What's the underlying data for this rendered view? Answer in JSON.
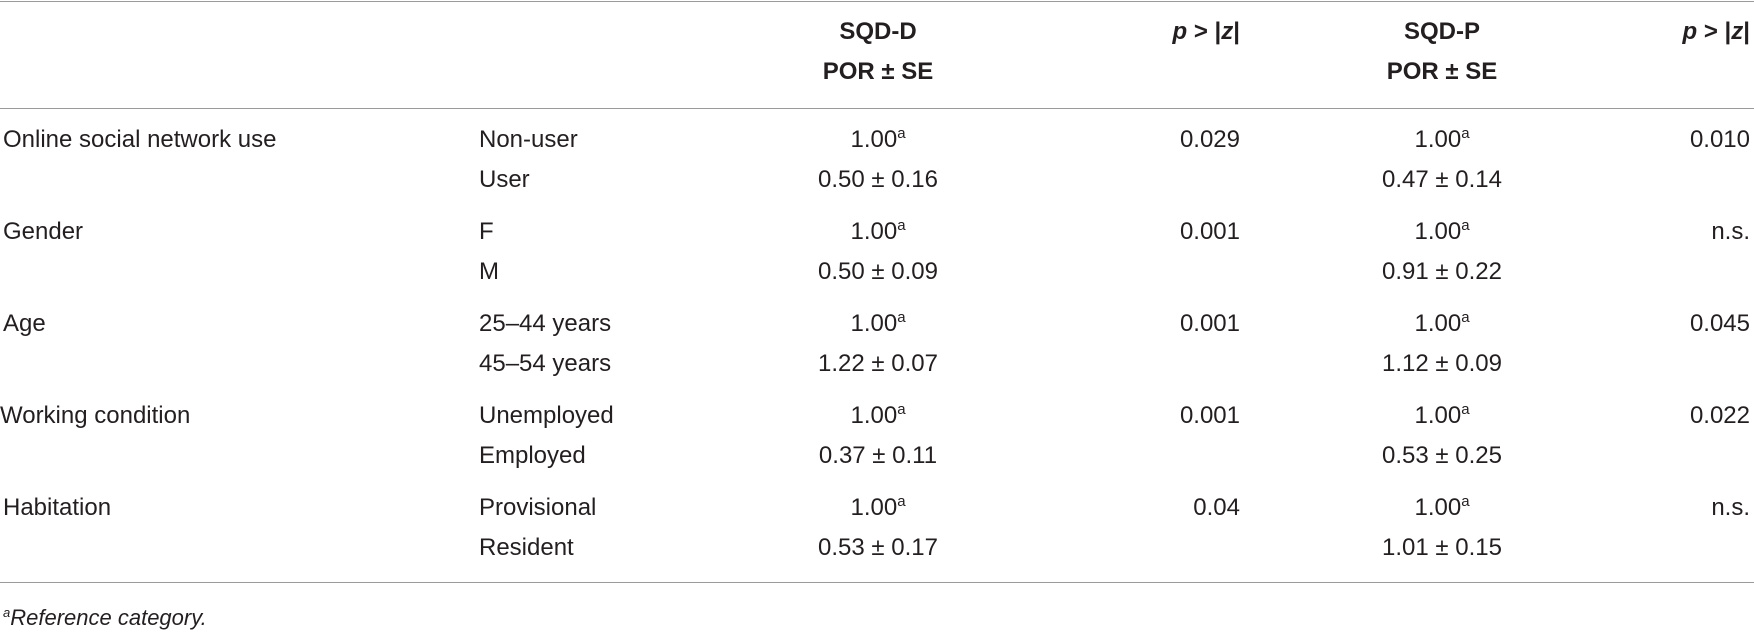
{
  "header": {
    "sqd_d_line1": "SQD-D",
    "sqd_d_line2": "POR ± SE",
    "p_italic": "p",
    "p_rest": " > |",
    "p_z": "z",
    "p_close": "|",
    "sqd_p_line1": "SQD-P",
    "sqd_p_line2": "POR ± SE"
  },
  "rows": [
    {
      "variable": "Online social network use",
      "cat1": "Non-user",
      "cat2": "User",
      "sqd_d_ref": "1.00",
      "sqd_d_val": "0.50 ± 0.16",
      "p_d": "0.029",
      "sqd_p_ref": "1.00",
      "sqd_p_val": "0.47 ± 0.14",
      "p_p": "0.010"
    },
    {
      "variable": "Gender",
      "cat1": "F",
      "cat2": "M",
      "sqd_d_ref": "1.00",
      "sqd_d_val": "0.50 ± 0.09",
      "p_d": "0.001",
      "sqd_p_ref": "1.00",
      "sqd_p_val": "0.91 ± 0.22",
      "p_p": "n.s."
    },
    {
      "variable": "Age",
      "cat1": "25–44 years",
      "cat2": "45–54 years",
      "sqd_d_ref": "1.00",
      "sqd_d_val": "1.22 ± 0.07",
      "p_d": "0.001",
      "sqd_p_ref": "1.00",
      "sqd_p_val": "1.12 ± 0.09",
      "p_p": "0.045"
    },
    {
      "variable": "Working condition",
      "cat1": "Unemployed",
      "cat2": "Employed",
      "sqd_d_ref": "1.00",
      "sqd_d_val": "0.37 ± 0.11",
      "p_d": "0.001",
      "sqd_p_ref": "1.00",
      "sqd_p_val": "0.53 ± 0.25",
      "p_p": "0.022"
    },
    {
      "variable": "Habitation",
      "cat1": "Provisional",
      "cat2": "Resident",
      "sqd_d_ref": "1.00",
      "sqd_d_val": "0.53 ± 0.17",
      "p_d": "0.04",
      "sqd_p_ref": "1.00",
      "sqd_p_val": "1.01 ± 0.15",
      "p_p": "n.s."
    }
  ],
  "ref_marker": "a",
  "footnote": {
    "marker": "a",
    "text": "Reference category."
  }
}
